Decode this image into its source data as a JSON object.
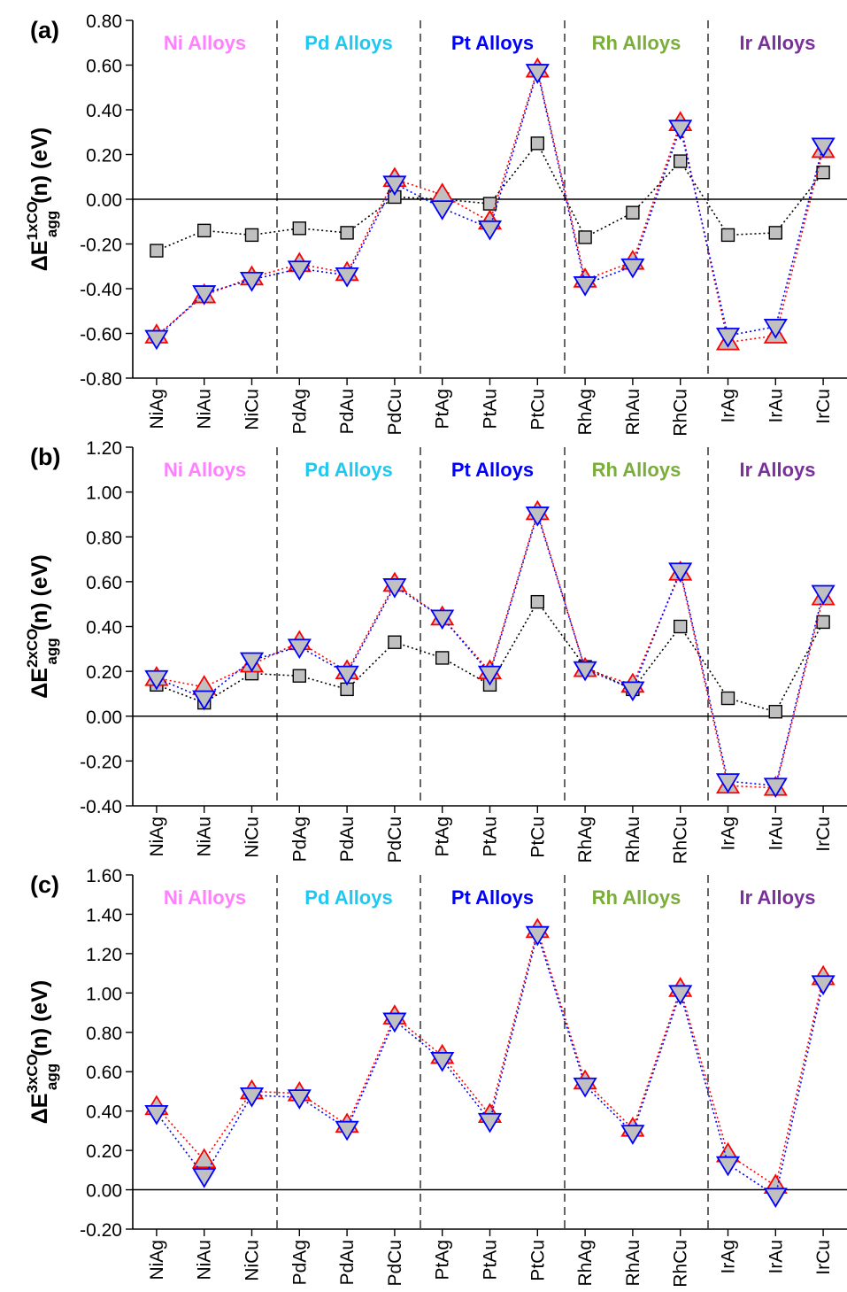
{
  "chart_data": [
    {
      "type": "scatter",
      "panel_label": "(a)",
      "ylabel": {
        "prefix": "ΔE",
        "sup": "1xCO",
        "sub": "agg",
        "suffix": "(n) (eV)"
      },
      "ylim": [
        -0.8,
        0.8
      ],
      "yticks": [
        0.8,
        0.6,
        0.4,
        0.2,
        0.0,
        -0.2,
        -0.4,
        -0.6,
        -0.8
      ],
      "ytick_labels": [
        "0.80",
        "0.60",
        "0.40",
        "0.20",
        "0.00",
        "-0.20",
        "-0.40",
        "-0.60",
        "-0.80"
      ],
      "categories": [
        "NiAg",
        "NiAu",
        "NiCu",
        "PdAg",
        "PdAu",
        "PdCu",
        "PtAg",
        "PtAu",
        "PtCu",
        "RhAg",
        "RhAu",
        "RhCu",
        "IrAg",
        "IrAu",
        "IrCu"
      ],
      "groups": [
        {
          "label": "Ni Alloys",
          "color": "#ff80ff"
        },
        {
          "label": "Pd Alloys",
          "color": "#1ec8f0"
        },
        {
          "label": "Pt Alloys",
          "color": "#0000ff"
        },
        {
          "label": "Rh Alloys",
          "color": "#7aad3a"
        },
        {
          "label": "Ir Alloys",
          "color": "#7a2f9a"
        }
      ],
      "series": [
        {
          "marker": "square",
          "edge": "#000000",
          "line": "#000000",
          "values": [
            -0.23,
            -0.14,
            -0.16,
            -0.13,
            -0.15,
            0.01,
            0.0,
            -0.02,
            0.25,
            -0.17,
            -0.06,
            0.17,
            -0.16,
            -0.15,
            0.12
          ]
        },
        {
          "marker": "triangle-up",
          "edge": "#ff0000",
          "line": "#ff0000",
          "values": [
            -0.61,
            -0.43,
            -0.35,
            -0.29,
            -0.33,
            0.09,
            0.02,
            -0.1,
            0.58,
            -0.36,
            -0.28,
            0.34,
            -0.64,
            -0.61,
            0.22
          ]
        },
        {
          "marker": "triangle-down",
          "edge": "#0000ff",
          "line": "#0000ff",
          "values": [
            -0.62,
            -0.42,
            -0.36,
            -0.31,
            -0.34,
            0.07,
            -0.04,
            -0.13,
            0.57,
            -0.38,
            -0.3,
            0.32,
            -0.61,
            -0.57,
            0.24
          ]
        }
      ]
    },
    {
      "type": "scatter",
      "panel_label": "(b)",
      "ylabel": {
        "prefix": "ΔE",
        "sup": "2xCO",
        "sub": "agg",
        "suffix": "(n) (eV)"
      },
      "ylim": [
        -0.4,
        1.2
      ],
      "yticks": [
        1.2,
        1.0,
        0.8,
        0.6,
        0.4,
        0.2,
        0.0,
        -0.2,
        -0.4
      ],
      "ytick_labels": [
        "1.20",
        "1.00",
        "0.80",
        "0.60",
        "0.40",
        "0.20",
        "0.00",
        "-0.20",
        "-0.40"
      ],
      "categories": [
        "NiAg",
        "NiAu",
        "NiCu",
        "PdAg",
        "PdAu",
        "PdCu",
        "PtAg",
        "PtAu",
        "PtCu",
        "RhAg",
        "RhAu",
        "RhCu",
        "IrAg",
        "IrAu",
        "IrCu"
      ],
      "groups": [
        {
          "label": "Ni Alloys",
          "color": "#ff80ff"
        },
        {
          "label": "Pd Alloys",
          "color": "#1ec8f0"
        },
        {
          "label": "Pt Alloys",
          "color": "#0000ff"
        },
        {
          "label": "Rh Alloys",
          "color": "#7aad3a"
        },
        {
          "label": "Ir Alloys",
          "color": "#7a2f9a"
        }
      ],
      "series": [
        {
          "marker": "square",
          "edge": "#000000",
          "line": "#000000",
          "values": [
            0.14,
            0.06,
            0.19,
            0.18,
            0.12,
            0.33,
            0.26,
            0.14,
            0.51,
            0.22,
            0.12,
            0.4,
            0.08,
            0.02,
            0.42
          ]
        },
        {
          "marker": "triangle-up",
          "edge": "#ff0000",
          "line": "#ff0000",
          "values": [
            0.17,
            0.13,
            0.23,
            0.33,
            0.2,
            0.59,
            0.44,
            0.2,
            0.91,
            0.21,
            0.14,
            0.64,
            -0.31,
            -0.32,
            0.53
          ]
        },
        {
          "marker": "triangle-down",
          "edge": "#0000ff",
          "line": "#0000ff",
          "values": [
            0.17,
            0.08,
            0.25,
            0.31,
            0.19,
            0.58,
            0.44,
            0.19,
            0.9,
            0.21,
            0.12,
            0.65,
            -0.29,
            -0.31,
            0.55
          ]
        }
      ]
    },
    {
      "type": "scatter",
      "panel_label": "(c)",
      "ylabel": {
        "prefix": "ΔE",
        "sup": "3xCO",
        "sub": "agg",
        "suffix": "(n) (eV)"
      },
      "ylim": [
        -0.2,
        1.6
      ],
      "yticks": [
        1.6,
        1.4,
        1.2,
        1.0,
        0.8,
        0.6,
        0.4,
        0.2,
        0.0,
        -0.2
      ],
      "ytick_labels": [
        "1.60",
        "1.40",
        "1.20",
        "1.00",
        "0.80",
        "0.60",
        "0.40",
        "0.20",
        "0.00",
        "-0.20"
      ],
      "categories": [
        "NiAg",
        "NiAu",
        "NiCu",
        "PdAg",
        "PdAu",
        "PdCu",
        "PtAg",
        "PtAu",
        "PtCu",
        "RhAg",
        "RhAu",
        "RhCu",
        "IrAg",
        "IrAu",
        "IrCu"
      ],
      "groups": [
        {
          "label": "Ni Alloys",
          "color": "#ff80ff"
        },
        {
          "label": "Pd Alloys",
          "color": "#1ec8f0"
        },
        {
          "label": "Pt Alloys",
          "color": "#0000ff"
        },
        {
          "label": "Rh Alloys",
          "color": "#7aad3a"
        },
        {
          "label": "Ir Alloys",
          "color": "#7a2f9a"
        }
      ],
      "series": [
        {
          "marker": "triangle-up",
          "edge": "#ff0000",
          "line": "#ff0000",
          "values": [
            0.42,
            0.15,
            0.5,
            0.49,
            0.33,
            0.88,
            0.68,
            0.38,
            1.32,
            0.55,
            0.31,
            1.02,
            0.18,
            0.02,
            1.08
          ]
        },
        {
          "marker": "triangle-down",
          "edge": "#0000ff",
          "line": "#0000ff",
          "values": [
            0.39,
            0.07,
            0.48,
            0.47,
            0.31,
            0.86,
            0.66,
            0.35,
            1.3,
            0.53,
            0.29,
            1.0,
            0.13,
            -0.03,
            1.05
          ]
        }
      ]
    }
  ]
}
